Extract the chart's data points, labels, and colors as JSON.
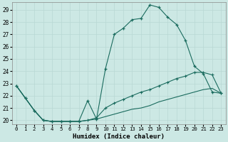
{
  "xlabel": "Humidex (Indice chaleur)",
  "bg_color": "#cce8e4",
  "grid_color": "#b8d8d4",
  "line_color": "#1a6b5e",
  "xlim": [
    -0.5,
    23.5
  ],
  "ylim": [
    19.7,
    29.6
  ],
  "xticks": [
    0,
    1,
    2,
    3,
    4,
    5,
    6,
    7,
    8,
    9,
    10,
    11,
    12,
    13,
    14,
    15,
    16,
    17,
    18,
    19,
    20,
    21,
    22,
    23
  ],
  "yticks": [
    20,
    21,
    22,
    23,
    24,
    25,
    26,
    27,
    28,
    29
  ],
  "series1_x": [
    0,
    1,
    2,
    3,
    4,
    5,
    6,
    7,
    8,
    9,
    10,
    11,
    12,
    13,
    14,
    15,
    16,
    17,
    18,
    19,
    20,
    21,
    22,
    23
  ],
  "series1_y": [
    22.8,
    21.8,
    20.8,
    20.0,
    19.9,
    19.9,
    19.9,
    19.9,
    21.6,
    20.1,
    24.2,
    27.0,
    27.5,
    28.2,
    28.3,
    29.4,
    29.2,
    28.4,
    27.8,
    26.5,
    24.4,
    23.8,
    22.3,
    22.2
  ],
  "series2_x": [
    0,
    1,
    2,
    3,
    4,
    5,
    6,
    7,
    8,
    9,
    10,
    11,
    12,
    13,
    14,
    15,
    16,
    17,
    18,
    19,
    20,
    21,
    22,
    23
  ],
  "series2_y": [
    22.8,
    21.8,
    20.8,
    20.0,
    19.9,
    19.9,
    19.9,
    19.9,
    20.0,
    20.2,
    21.0,
    21.4,
    21.7,
    22.0,
    22.3,
    22.5,
    22.8,
    23.1,
    23.4,
    23.6,
    23.9,
    23.9,
    23.7,
    22.2
  ],
  "series3_x": [
    0,
    1,
    2,
    3,
    4,
    5,
    6,
    7,
    8,
    9,
    10,
    11,
    12,
    13,
    14,
    15,
    16,
    17,
    18,
    19,
    20,
    21,
    22,
    23
  ],
  "series3_y": [
    22.8,
    21.8,
    20.8,
    20.0,
    19.9,
    19.9,
    19.9,
    19.9,
    20.0,
    20.1,
    20.3,
    20.5,
    20.7,
    20.9,
    21.0,
    21.2,
    21.5,
    21.7,
    21.9,
    22.1,
    22.3,
    22.5,
    22.6,
    22.2
  ]
}
